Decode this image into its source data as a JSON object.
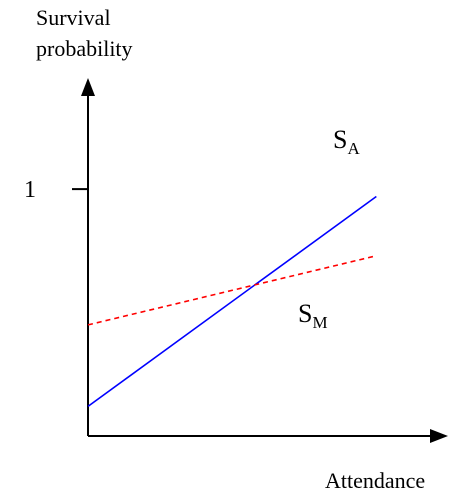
{
  "chart_data": {
    "type": "line",
    "ylabel_line1": "Survival",
    "ylabel_line2": "probability",
    "xlabel": "Attendance",
    "y_ticks": [
      {
        "value": 1,
        "label": "1"
      }
    ],
    "ylim": [
      0,
      1.45
    ],
    "xlim": [
      0,
      1.2
    ],
    "series": [
      {
        "name": "S",
        "subscript": "A",
        "style": "solid",
        "color": "#0000ff",
        "x": [
          0,
          1
        ],
        "y": [
          0.12,
          0.97
        ]
      },
      {
        "name": "S",
        "subscript": "M",
        "style": "dashed",
        "color": "#ff0000",
        "x": [
          0,
          1
        ],
        "y": [
          0.45,
          0.73
        ]
      }
    ],
    "grid": false,
    "legend": "none"
  }
}
